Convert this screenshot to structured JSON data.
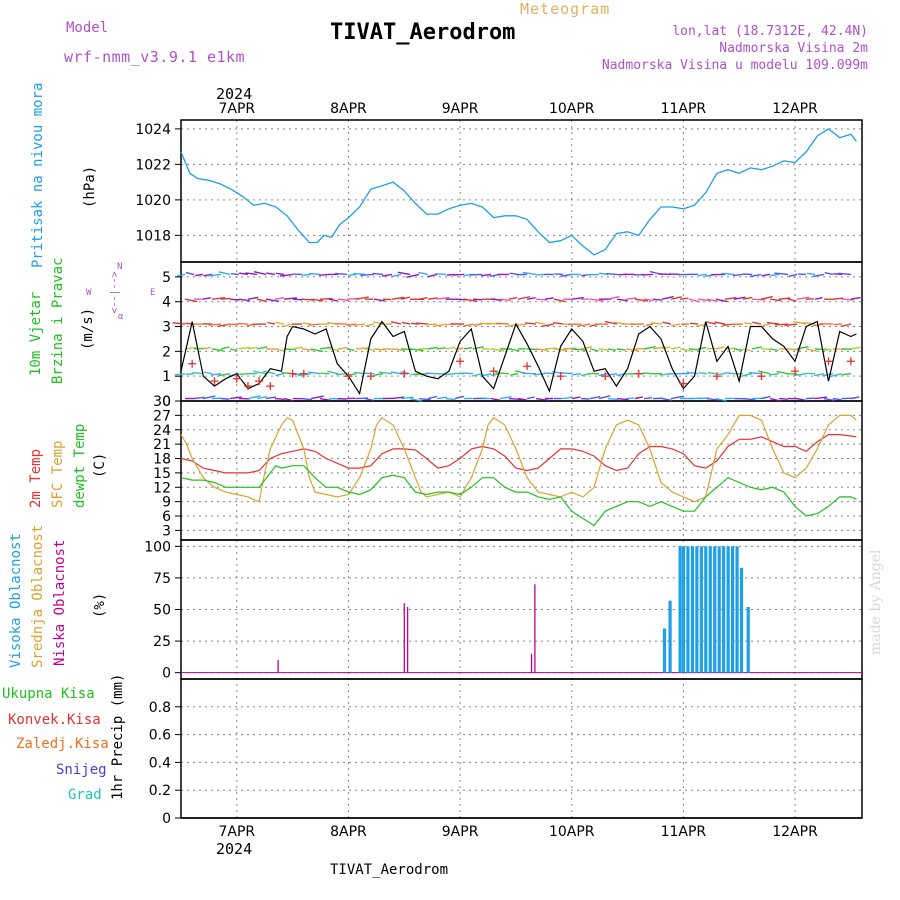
{
  "header": {
    "model_label": "Model",
    "model_value": "wrf-nmm_v3.9.1 e1km",
    "meteogram_label": "Meteogram",
    "title": "TIVAT_Aerodrom",
    "lonlat": "lon,lat (18.7312E, 42.4N)",
    "elevation": "Nadmorska Visina 2m",
    "model_elevation": "Nadmorska Visina u modelu 109.099m",
    "watermark": "made by Angel",
    "footer_title": "TIVAT_Aerodrom",
    "year": "2024"
  },
  "colors": {
    "pressure": "#1ea0e6",
    "wind_speed": "#000000",
    "gust": "#e63232",
    "temp2m": "#e63232",
    "sfc_temp": "#e0a030",
    "dewpoint": "#20c020",
    "cloud_high": "#1ea0e6",
    "cloud_mid": "#e0a030",
    "cloud_low": "#c00090",
    "precip_total": "#20c020",
    "precip_conv": "#e63232",
    "precip_freezing": "#f07020",
    "precip_snow": "#4040e0",
    "precip_hail": "#20c0c0"
  },
  "chart_data": [
    {
      "type": "line",
      "panel": "pressure",
      "ylabel": "(hPa)",
      "side_labels": [
        "Pritisak na nivou mora"
      ],
      "ylim": [
        1016.5,
        1024.5
      ],
      "yticks": [
        1018,
        1020,
        1022,
        1024
      ],
      "x_ticks": [
        "7APR",
        "8APR",
        "9APR",
        "10APR",
        "11APR",
        "12APR"
      ],
      "x_unit": "day offset from 7APR 00",
      "x_range": [
        -0.5,
        5.6
      ],
      "series": [
        {
          "x": [
            -0.5,
            -0.42,
            -0.35,
            -0.25,
            -0.15,
            -0.05,
            0.05,
            0.15,
            0.25,
            0.35,
            0.45,
            0.55,
            0.65,
            0.72,
            0.78,
            0.85,
            0.92,
            1.0,
            1.1,
            1.2,
            1.3,
            1.4,
            1.5,
            1.6,
            1.7,
            1.8,
            1.9,
            2.0,
            2.1,
            2.2,
            2.3,
            2.4,
            2.5,
            2.6,
            2.7,
            2.8,
            2.9,
            3.0,
            3.1,
            3.2,
            3.3,
            3.4,
            3.5,
            3.6,
            3.7,
            3.8,
            3.9,
            4.0,
            4.1,
            4.2,
            4.3,
            4.4,
            4.5,
            4.6,
            4.7,
            4.8,
            4.9,
            5.0,
            5.1,
            5.2,
            5.3,
            5.4,
            5.5,
            5.55
          ],
          "values": [
            1022.7,
            1021.5,
            1021.2,
            1021.1,
            1020.9,
            1020.6,
            1020.2,
            1019.7,
            1019.8,
            1019.6,
            1019.1,
            1018.3,
            1017.6,
            1017.6,
            1018.0,
            1017.9,
            1018.6,
            1019.0,
            1019.6,
            1020.6,
            1020.8,
            1021.0,
            1020.5,
            1019.8,
            1019.2,
            1019.2,
            1019.5,
            1019.7,
            1019.8,
            1019.6,
            1019.0,
            1019.1,
            1019.1,
            1018.9,
            1018.2,
            1017.6,
            1017.7,
            1018.0,
            1017.4,
            1016.9,
            1017.2,
            1018.1,
            1018.2,
            1018.0,
            1018.9,
            1019.6,
            1019.6,
            1019.5,
            1019.7,
            1020.4,
            1021.5,
            1021.7,
            1021.5,
            1021.8,
            1021.7,
            1021.9,
            1022.2,
            1022.1,
            1022.7,
            1023.6,
            1024.0,
            1023.5,
            1023.7,
            1023.3
          ]
        }
      ]
    },
    {
      "type": "line",
      "panel": "wind",
      "ylabel": "(m/s)",
      "side_labels": [
        "10m Vjetar",
        "Brzina i Pravac"
      ],
      "direction_key": {
        "n": "N",
        "s": "S",
        "e": "E",
        "w": "W",
        "arrow": "<--|-->",
        "alpha": "α"
      },
      "ylim": [
        0,
        5.6
      ],
      "yticks": [
        0,
        1,
        2,
        3,
        4,
        5
      ],
      "series": [
        {
          "name": "speed",
          "x": [
            -0.5,
            -0.4,
            -0.3,
            -0.2,
            -0.1,
            0.0,
            0.1,
            0.2,
            0.3,
            0.4,
            0.45,
            0.5,
            0.6,
            0.7,
            0.8,
            0.9,
            1.0,
            1.1,
            1.2,
            1.3,
            1.4,
            1.5,
            1.6,
            1.7,
            1.8,
            1.9,
            2.0,
            2.1,
            2.2,
            2.3,
            2.4,
            2.5,
            2.6,
            2.7,
            2.8,
            2.9,
            3.0,
            3.1,
            3.2,
            3.3,
            3.4,
            3.5,
            3.6,
            3.7,
            3.8,
            3.9,
            4.0,
            4.1,
            4.2,
            4.3,
            4.4,
            4.5,
            4.6,
            4.7,
            4.8,
            4.9,
            5.0,
            5.1,
            5.2,
            5.3,
            5.4,
            5.5,
            5.55
          ],
          "values": [
            1.2,
            3.2,
            1.0,
            0.6,
            0.9,
            1.1,
            0.5,
            0.7,
            1.3,
            1.2,
            2.6,
            3.0,
            2.9,
            2.7,
            2.9,
            1.5,
            1.0,
            0.3,
            2.5,
            3.2,
            2.6,
            2.8,
            1.2,
            1.0,
            0.9,
            1.2,
            2.4,
            2.9,
            1.0,
            0.5,
            1.8,
            3.1,
            2.3,
            1.4,
            0.4,
            2.2,
            2.9,
            2.4,
            1.2,
            1.3,
            0.6,
            1.3,
            2.7,
            3.0,
            2.5,
            1.3,
            0.5,
            1.0,
            3.2,
            1.6,
            2.2,
            0.8,
            3.0,
            3.0,
            2.5,
            2.2,
            1.6,
            3.0,
            3.2,
            0.8,
            2.8,
            2.6,
            2.7
          ]
        },
        {
          "name": "gust",
          "x": [
            -0.4,
            -0.2,
            0.0,
            0.1,
            0.2,
            0.3,
            0.5,
            0.6,
            1.0,
            1.2,
            1.5,
            2.0,
            2.3,
            2.6,
            2.9,
            3.3,
            3.6,
            4.0,
            4.3,
            4.7,
            5.0,
            5.3,
            5.5
          ],
          "values": [
            1.5,
            0.8,
            0.9,
            0.6,
            0.8,
            0.6,
            1.1,
            1.1,
            1.0,
            1.0,
            1.1,
            1.6,
            1.2,
            1.4,
            1.0,
            1.0,
            1.1,
            0.7,
            1.0,
            1.0,
            1.2,
            1.6,
            1.6
          ]
        }
      ]
    },
    {
      "type": "line",
      "panel": "temperature",
      "ylabel": "(C)",
      "side_labels": [
        "2m Temp",
        "SFC Temp",
        "dewpt Temp"
      ],
      "ylim": [
        1,
        30
      ],
      "yticks": [
        3,
        6,
        9,
        12,
        15,
        18,
        21,
        24,
        27,
        30
      ],
      "series": [
        {
          "name": "2m Temp",
          "x": [
            -0.5,
            -0.4,
            -0.3,
            -0.2,
            -0.1,
            0.0,
            0.1,
            0.2,
            0.3,
            0.4,
            0.5,
            0.6,
            0.7,
            0.8,
            0.9,
            1.0,
            1.1,
            1.2,
            1.3,
            1.4,
            1.5,
            1.6,
            1.7,
            1.8,
            1.9,
            2.0,
            2.1,
            2.2,
            2.3,
            2.4,
            2.5,
            2.6,
            2.7,
            2.8,
            2.9,
            3.0,
            3.1,
            3.2,
            3.3,
            3.4,
            3.5,
            3.6,
            3.7,
            3.8,
            3.9,
            4.0,
            4.1,
            4.2,
            4.3,
            4.4,
            4.5,
            4.6,
            4.7,
            4.8,
            4.9,
            5.0,
            5.1,
            5.2,
            5.3,
            5.4,
            5.5,
            5.55
          ],
          "values": [
            18,
            17.5,
            16,
            15.5,
            15,
            15,
            15,
            15.5,
            18,
            19,
            19.5,
            20,
            19.5,
            18,
            17,
            16,
            16,
            16.5,
            19,
            20,
            20,
            19.8,
            18,
            16,
            16.5,
            18,
            20,
            20.5,
            20,
            18.5,
            16,
            15.5,
            16,
            18,
            20,
            20,
            19.5,
            18.5,
            16.5,
            15.5,
            16,
            19,
            20.5,
            20.5,
            20,
            19,
            16.5,
            16,
            17.5,
            20.5,
            22,
            22,
            22.5,
            21.5,
            20.5,
            20.5,
            19.5,
            21.5,
            23,
            23,
            22.7,
            22.5
          ]
        },
        {
          "name": "SFC Temp",
          "x": [
            -0.5,
            -0.45,
            -0.4,
            -0.3,
            -0.2,
            -0.1,
            0.0,
            0.1,
            0.2,
            0.25,
            0.3,
            0.4,
            0.45,
            0.5,
            0.6,
            0.65,
            0.7,
            0.8,
            0.9,
            1.0,
            1.1,
            1.2,
            1.25,
            1.3,
            1.4,
            1.5,
            1.6,
            1.65,
            1.7,
            1.8,
            1.9,
            2.0,
            2.1,
            2.2,
            2.25,
            2.3,
            2.4,
            2.5,
            2.6,
            2.7,
            2.8,
            2.9,
            3.0,
            3.1,
            3.2,
            3.3,
            3.4,
            3.5,
            3.6,
            3.7,
            3.8,
            3.9,
            4.0,
            4.1,
            4.2,
            4.3,
            4.4,
            4.5,
            4.6,
            4.7,
            4.8,
            4.9,
            5.0,
            5.1,
            5.2,
            5.3,
            5.4,
            5.5,
            5.55
          ],
          "values": [
            23,
            21,
            18,
            14,
            12,
            11,
            10.5,
            10,
            9,
            15,
            20,
            25,
            26.5,
            26,
            20,
            14,
            11,
            10.5,
            10,
            10.5,
            14,
            20,
            25,
            26.5,
            25,
            20,
            14,
            11,
            10,
            10.5,
            11,
            10,
            14,
            20,
            25,
            26.5,
            25,
            20,
            14,
            11,
            10.5,
            10,
            11,
            10,
            12,
            20,
            25,
            26,
            25,
            20,
            13,
            11,
            10,
            9,
            10,
            20,
            23,
            27,
            27,
            26,
            20,
            15,
            14,
            16,
            20,
            25,
            27,
            27,
            26
          ]
        },
        {
          "name": "dewpt Temp",
          "x": [
            -0.5,
            -0.4,
            -0.3,
            -0.2,
            -0.1,
            0.0,
            0.1,
            0.2,
            0.3,
            0.35,
            0.4,
            0.5,
            0.6,
            0.7,
            0.8,
            0.9,
            1.0,
            1.1,
            1.2,
            1.3,
            1.4,
            1.5,
            1.6,
            1.7,
            1.8,
            1.9,
            2.0,
            2.1,
            2.2,
            2.3,
            2.4,
            2.5,
            2.6,
            2.7,
            2.8,
            2.9,
            3.0,
            3.1,
            3.2,
            3.3,
            3.4,
            3.5,
            3.6,
            3.7,
            3.8,
            3.9,
            4.0,
            4.1,
            4.2,
            4.3,
            4.4,
            4.5,
            4.6,
            4.7,
            4.8,
            4.9,
            5.0,
            5.1,
            5.2,
            5.3,
            5.4,
            5.5,
            5.55
          ],
          "values": [
            14,
            13.5,
            13.5,
            13,
            12,
            12,
            12,
            12,
            15,
            16.5,
            16,
            16.5,
            16.5,
            14,
            12,
            12,
            11,
            10.5,
            11.5,
            14,
            14.5,
            14,
            11,
            10.5,
            11,
            11,
            10.5,
            12,
            14,
            14,
            12,
            11,
            11,
            10,
            9.5,
            10,
            7,
            5.5,
            4,
            7,
            8,
            9,
            9,
            8,
            9,
            8,
            7,
            7,
            10,
            12,
            14,
            13,
            12,
            11.5,
            12,
            11,
            8,
            6,
            6.5,
            8,
            10,
            10,
            9.5
          ]
        }
      ]
    },
    {
      "type": "bar",
      "panel": "cloud cover",
      "ylabel": "(%)",
      "side_labels": [
        "Visoka Oblacnost",
        "Srednja Oblacnost",
        "Niska Oblacnost"
      ],
      "ylim": [
        -5,
        105
      ],
      "yticks": [
        0,
        25,
        50,
        75,
        100
      ],
      "series": [
        {
          "name": "Niska Oblacnost",
          "x": [
            0.37,
            1.5,
            1.53,
            2.64,
            2.67
          ],
          "values": [
            10,
            55,
            52,
            15,
            70
          ]
        },
        {
          "name": "Visoka Oblacnost",
          "x": [
            3.83,
            3.88,
            3.97,
            4.0,
            4.04,
            4.08,
            4.12,
            4.16,
            4.2,
            4.24,
            4.28,
            4.32,
            4.36,
            4.4,
            4.44,
            4.48,
            4.52,
            4.58
          ],
          "values": [
            35,
            57,
            100,
            100,
            100,
            100,
            100,
            100,
            100,
            100,
            100,
            100,
            100,
            100,
            100,
            100,
            83,
            52
          ]
        }
      ]
    },
    {
      "type": "line",
      "panel": "precipitation",
      "ylabel": "1hr Precip (mm)",
      "side_labels": [
        "Ukupna Kisa",
        "Konvek.Kisa",
        "Zaledj.Kisa",
        "Snijeg",
        "Grad"
      ],
      "ylim": [
        0,
        1.0
      ],
      "yticks": [
        0,
        0.2,
        0.4,
        0.6,
        0.8
      ],
      "ytick_labels": [
        "0",
        "0.2",
        "0.4",
        "0.6",
        "0.8"
      ],
      "series": []
    }
  ]
}
